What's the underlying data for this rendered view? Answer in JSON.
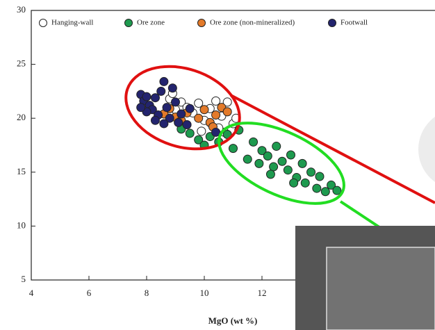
{
  "chart_data": {
    "type": "scatter",
    "x_label": "MgO (wt %)",
    "xlim": [
      4,
      18
    ],
    "ylim": [
      5,
      30
    ],
    "xticks": [
      4,
      6,
      8,
      10,
      12
    ],
    "yticks": [
      5,
      10,
      15,
      20,
      25,
      30
    ],
    "legend": "top",
    "series": [
      {
        "name": "Hanging-wall",
        "color": "#ffffff",
        "x": [
          8.8,
          9.0,
          9.2,
          9.4,
          9.6,
          9.8,
          10.0,
          10.2,
          10.4,
          10.6,
          10.8,
          11.0,
          9.3,
          9.9,
          10.7,
          8.9,
          10.5,
          11.1
        ],
        "values": [
          21.8,
          20.8,
          21.5,
          21.0,
          20.5,
          21.4,
          19.8,
          20.9,
          21.6,
          20.2,
          21.5,
          19.5,
          19.4,
          18.8,
          18.7,
          22.3,
          19.1,
          20.0
        ]
      },
      {
        "name": "Ore zone",
        "color": "#1e9a4f",
        "x": [
          9.2,
          9.5,
          9.8,
          10.0,
          10.2,
          10.5,
          10.8,
          11.0,
          11.2,
          11.5,
          11.7,
          11.9,
          12.0,
          12.2,
          12.4,
          12.5,
          12.7,
          12.9,
          13.0,
          13.2,
          13.4,
          13.5,
          13.7,
          13.9,
          14.0,
          14.2,
          14.4,
          14.6,
          12.3,
          13.1
        ],
        "values": [
          19.0,
          18.6,
          18.0,
          17.5,
          18.3,
          17.8,
          18.5,
          17.2,
          18.9,
          16.2,
          17.8,
          15.8,
          17.0,
          16.5,
          15.5,
          17.4,
          16.0,
          15.2,
          16.6,
          14.5,
          15.8,
          14.0,
          15.0,
          13.5,
          14.6,
          13.2,
          13.8,
          13.3,
          14.8,
          14.0
        ]
      },
      {
        "name": "Ore zone (non-mineralized)",
        "color": "#e37a2a",
        "x": [
          8.6,
          8.8,
          9.0,
          9.2,
          9.4,
          9.8,
          10.0,
          10.2,
          10.4,
          10.6,
          10.3,
          10.8
        ],
        "values": [
          20.4,
          20.9,
          20.1,
          19.8,
          20.5,
          20.0,
          20.8,
          19.6,
          20.3,
          21.0,
          19.2,
          20.6
        ]
      },
      {
        "name": "Footwall",
        "color": "#23246e",
        "x": [
          7.8,
          7.9,
          8.0,
          8.1,
          8.2,
          8.3,
          8.4,
          8.5,
          8.6,
          8.3,
          8.7,
          8.8,
          8.9,
          9.0,
          9.1,
          9.2,
          8.0,
          7.8,
          9.4,
          8.6,
          9.5,
          10.4
        ],
        "values": [
          22.2,
          21.6,
          22.0,
          21.2,
          20.8,
          21.9,
          20.3,
          22.5,
          23.4,
          19.8,
          21.0,
          20.0,
          22.8,
          21.5,
          19.6,
          20.4,
          20.6,
          21.0,
          19.4,
          19.5,
          20.9,
          18.7
        ]
      }
    ]
  }
}
